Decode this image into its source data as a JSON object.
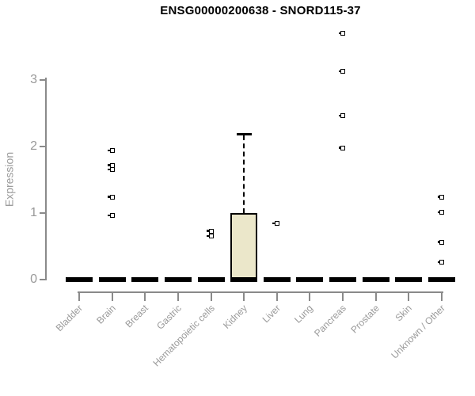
{
  "title": "ENSG00000200638 - SNORD115-37",
  "y_axis": {
    "label": "Expression"
  },
  "colors": {
    "box_fill": "#ebe7ca",
    "box_stroke": "#000000",
    "axis_line": "#8a8a8a",
    "axis_text": "#999999",
    "title_text": "#000000",
    "background": "#ffffff"
  },
  "chart_data": {
    "type": "boxplot",
    "title": "ENSG00000200638 - SNORD115-37",
    "xlabel": "",
    "ylabel": "Expression",
    "yticks": [
      0,
      1,
      2,
      3
    ],
    "ylim": [
      0,
      3.8
    ],
    "grid": false,
    "legend": "none",
    "outlier_marker": "open-square",
    "categories": [
      "Bladder",
      "Brain",
      "Breast",
      "Gastric",
      "Hematopoietic cells",
      "Kidney",
      "Liver",
      "Lung",
      "Pancreas",
      "Prostate",
      "Skin",
      "Unknown / Other"
    ],
    "series": [
      {
        "name": "Bladder",
        "whisker_low": 0,
        "q1": 0,
        "median": 0,
        "q3": 0,
        "whisker_high": 0,
        "outliers": []
      },
      {
        "name": "Brain",
        "whisker_low": 0,
        "q1": 0,
        "median": 0,
        "q3": 0,
        "whisker_high": 0,
        "outliers": [
          1.94,
          1.72,
          1.65,
          1.24,
          0.96
        ]
      },
      {
        "name": "Breast",
        "whisker_low": 0,
        "q1": 0,
        "median": 0,
        "q3": 0,
        "whisker_high": 0,
        "outliers": []
      },
      {
        "name": "Gastric",
        "whisker_low": 0,
        "q1": 0,
        "median": 0,
        "q3": 0,
        "whisker_high": 0,
        "outliers": []
      },
      {
        "name": "Hematopoietic cells",
        "whisker_low": 0,
        "q1": 0,
        "median": 0,
        "q3": 0,
        "whisker_high": 0,
        "outliers": [
          0.73,
          0.65
        ]
      },
      {
        "name": "Kidney",
        "whisker_low": 0,
        "q1": 0,
        "median": 0,
        "q3": 1.0,
        "whisker_high": 2.2,
        "outliers": []
      },
      {
        "name": "Liver",
        "whisker_low": 0,
        "q1": 0,
        "median": 0,
        "q3": 0,
        "whisker_high": 0,
        "outliers": [
          0.84
        ]
      },
      {
        "name": "Lung",
        "whisker_low": 0,
        "q1": 0,
        "median": 0,
        "q3": 0,
        "whisker_high": 0,
        "outliers": []
      },
      {
        "name": "Pancreas",
        "whisker_low": 0,
        "q1": 0,
        "median": 0,
        "q3": 0,
        "whisker_high": 0,
        "outliers": [
          3.7,
          3.13,
          2.46,
          1.98
        ]
      },
      {
        "name": "Prostate",
        "whisker_low": 0,
        "q1": 0,
        "median": 0,
        "q3": 0,
        "whisker_high": 0,
        "outliers": []
      },
      {
        "name": "Skin",
        "whisker_low": 0,
        "q1": 0,
        "median": 0,
        "q3": 0,
        "whisker_high": 0,
        "outliers": []
      },
      {
        "name": "Unknown / Other",
        "whisker_low": 0,
        "q1": 0,
        "median": 0,
        "q3": 0,
        "whisker_high": 0,
        "outliers": [
          1.24,
          1.01,
          0.56,
          0.26
        ]
      }
    ]
  }
}
